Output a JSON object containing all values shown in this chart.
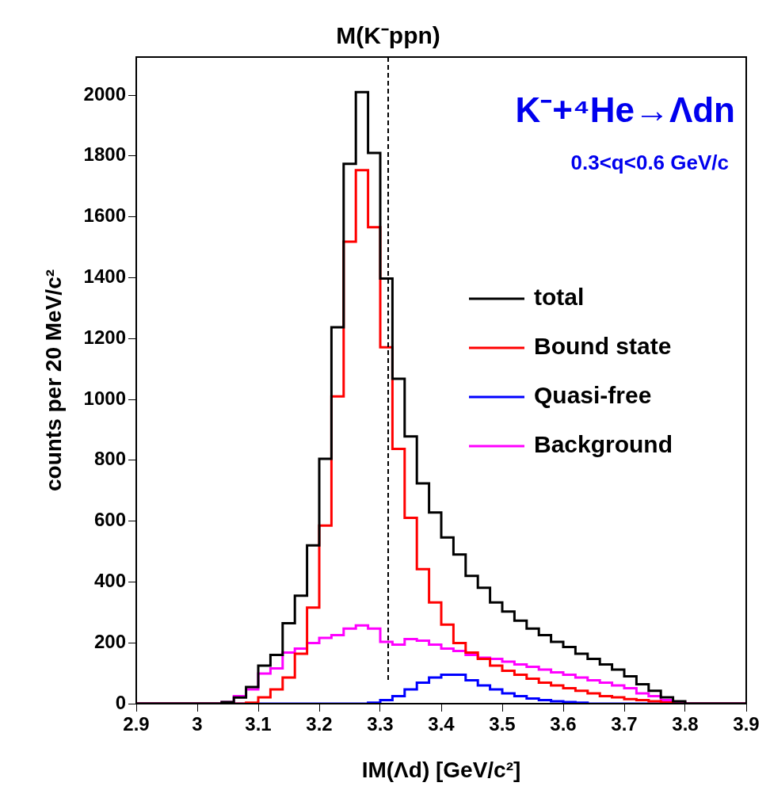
{
  "chart_data": {
    "type": "histogram",
    "xlabel": "IM(Λd) [GeV/c²]",
    "ylabel": "counts per 20 MeV/c²",
    "annotations": [
      "K⁻+⁴He→Λdn",
      "0.3<q<0.6 GeV/c"
    ],
    "bins": [
      2.9,
      2.92,
      2.94,
      2.96,
      2.98,
      3.0,
      3.02,
      3.04,
      3.06,
      3.08,
      3.1,
      3.12,
      3.14,
      3.16,
      3.18,
      3.2,
      3.22,
      3.24,
      3.26,
      3.28,
      3.3,
      3.32,
      3.34,
      3.36,
      3.38,
      3.4,
      3.42,
      3.44,
      3.46,
      3.48,
      3.5,
      3.52,
      3.54,
      3.56,
      3.58,
      3.6,
      3.62,
      3.64,
      3.66,
      3.68,
      3.7,
      3.72,
      3.74,
      3.76,
      3.78,
      3.8,
      3.82,
      3.84,
      3.86,
      3.88,
      3.9
    ],
    "series": [
      {
        "name": "total",
        "color": "#000000",
        "values": [
          0,
          0,
          0,
          0,
          0,
          0,
          0,
          5,
          20,
          55,
          125,
          160,
          264,
          355,
          520,
          805,
          1237,
          1774,
          2010,
          1810,
          1397,
          1068,
          878,
          724,
          628,
          546,
          490,
          420,
          381,
          333,
          303,
          273,
          247,
          225,
          203,
          186,
          164,
          147,
          129,
          112,
          90,
          64,
          42,
          21,
          8,
          0,
          0,
          0,
          0,
          0
        ]
      },
      {
        "name": "Bound state",
        "color": "#ff0000",
        "values": [
          0,
          0,
          0,
          0,
          0,
          0,
          0,
          0,
          0,
          3,
          21,
          47,
          86,
          164,
          316,
          585,
          1010,
          1518,
          1753,
          1566,
          1171,
          837,
          611,
          442,
          333,
          260,
          199,
          168,
          147,
          125,
          108,
          95,
          82,
          69,
          60,
          51,
          42,
          34,
          25,
          21,
          15,
          12,
          8,
          4,
          0,
          0,
          0,
          0,
          0,
          0
        ]
      },
      {
        "name": "Quasi-free",
        "color": "#0000ff",
        "values": [
          0,
          0,
          0,
          0,
          0,
          0,
          0,
          0,
          0,
          0,
          0,
          0,
          0,
          0,
          0,
          0,
          0,
          0,
          0,
          3,
          12,
          25,
          47,
          69,
          86,
          95,
          95,
          77,
          60,
          47,
          34,
          25,
          17,
          12,
          8,
          5,
          3,
          0,
          0,
          0,
          0,
          0,
          0,
          0,
          0,
          0,
          0,
          0,
          0,
          0
        ]
      },
      {
        "name": "Background",
        "color": "#ff00ff",
        "values": [
          0,
          0,
          0,
          0,
          0,
          0,
          0,
          5,
          25,
          47,
          99,
          116,
          168,
          181,
          199,
          216,
          225,
          247,
          257,
          247,
          203,
          194,
          212,
          207,
          194,
          181,
          173,
          160,
          151,
          147,
          138,
          129,
          121,
          112,
          103,
          95,
          86,
          77,
          69,
          60,
          51,
          34,
          25,
          12,
          5,
          0,
          0,
          0,
          0,
          0
        ]
      }
    ],
    "xlim": [
      2.9,
      3.9
    ],
    "xticks": [
      2.9,
      3,
      3.1,
      3.2,
      3.3,
      3.4,
      3.5,
      3.6,
      3.7,
      3.8,
      3.9
    ],
    "ylim": [
      0,
      2125
    ],
    "yticks": [
      0,
      200,
      400,
      600,
      800,
      1000,
      1200,
      1400,
      1600,
      1800,
      2000
    ],
    "ref_lines": [
      {
        "axis": "x",
        "value": 3.313,
        "label": "M(K⁻ppn)",
        "line_style": "dashed",
        "color": "#000000"
      }
    ],
    "legend": "right",
    "grid": false
  }
}
